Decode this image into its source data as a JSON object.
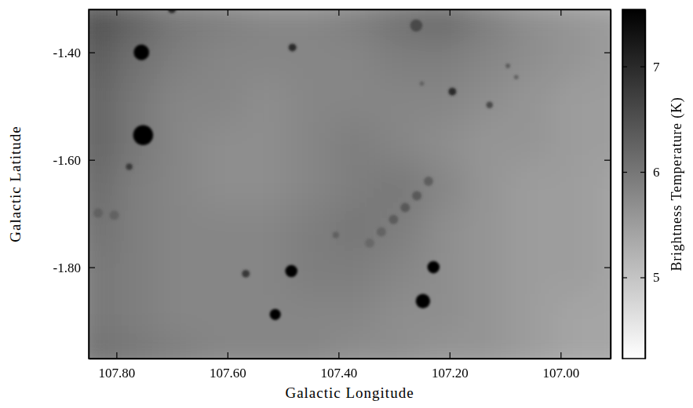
{
  "chart_data": {
    "type": "heatmap",
    "x_label": "Galactic Longitude",
    "y_label": "Galactic Latitude",
    "xlim": [
      107.85,
      106.91
    ],
    "ylim": [
      -1.97,
      -1.32
    ],
    "xticks": [
      {
        "value": 107.8,
        "label": "107.80"
      },
      {
        "value": 107.6,
        "label": "107.60"
      },
      {
        "value": 107.4,
        "label": "107.40"
      },
      {
        "value": 107.2,
        "label": "107.20"
      },
      {
        "value": 107.0,
        "label": "107.00"
      }
    ],
    "yticks": [
      {
        "value": -1.4,
        "label": "-1.40"
      },
      {
        "value": -1.6,
        "label": "-1.60"
      },
      {
        "value": -1.8,
        "label": "-1.80"
      }
    ],
    "cells": {
      "x": [
        107.85,
        107.77,
        107.69,
        107.61,
        107.53,
        107.45,
        107.37,
        107.29,
        107.21,
        107.13,
        107.05,
        106.97,
        106.89
      ],
      "y": [
        -1.33,
        -1.41,
        -1.49,
        -1.57,
        -1.65,
        -1.73,
        -1.81,
        -1.89,
        -1.97
      ],
      "values": [
        [
          6.6,
          6.3,
          6.0,
          5.9,
          5.8,
          5.8,
          5.9,
          6.1,
          6.2,
          5.9,
          5.7,
          5.6,
          5.5
        ],
        [
          6.4,
          6.1,
          5.9,
          5.8,
          5.8,
          5.8,
          5.8,
          5.9,
          5.9,
          5.8,
          5.7,
          5.6,
          5.5
        ],
        [
          6.3,
          6.0,
          5.8,
          5.8,
          5.7,
          5.8,
          5.8,
          5.8,
          5.8,
          5.7,
          5.6,
          5.5,
          5.5
        ],
        [
          6.3,
          6.0,
          5.8,
          5.7,
          5.7,
          5.8,
          5.9,
          5.8,
          5.7,
          5.6,
          5.6,
          5.5,
          5.5
        ],
        [
          6.2,
          5.9,
          5.8,
          5.7,
          5.7,
          5.8,
          5.9,
          6.0,
          5.8,
          5.6,
          5.5,
          5.5,
          5.4
        ],
        [
          6.1,
          5.9,
          5.8,
          5.8,
          5.8,
          5.9,
          6.0,
          5.9,
          5.7,
          5.6,
          5.5,
          5.5,
          5.4
        ],
        [
          6.0,
          5.9,
          5.8,
          5.8,
          5.8,
          5.9,
          5.9,
          5.8,
          5.7,
          5.6,
          5.5,
          5.5,
          5.4
        ],
        [
          6.0,
          5.9,
          5.8,
          5.8,
          5.8,
          5.8,
          5.8,
          5.7,
          5.7,
          5.6,
          5.5,
          5.4,
          5.4
        ],
        [
          6.1,
          6.0,
          5.9,
          5.8,
          5.8,
          5.8,
          5.7,
          5.7,
          5.6,
          5.6,
          5.5,
          5.4,
          5.4
        ]
      ]
    },
    "sources": {
      "x": [
        107.755,
        107.752,
        107.777,
        107.483,
        107.7,
        107.485,
        107.514,
        107.567,
        107.229,
        107.248,
        107.195,
        107.128,
        107.095,
        107.08,
        107.26,
        107.405,
        107.25
      ],
      "y": [
        -1.4,
        -1.554,
        -1.613,
        -1.391,
        -1.32,
        -1.807,
        -1.888,
        -1.812,
        -1.8,
        -1.863,
        -1.473,
        -1.498,
        -1.425,
        -1.446,
        -1.35,
        -1.74,
        -1.458
      ],
      "values": [
        7.5,
        7.5,
        6.8,
        7.0,
        7.0,
        7.5,
        7.5,
        6.8,
        7.5,
        7.5,
        7.0,
        6.6,
        6.4,
        6.3,
        6.6,
        6.3,
        6.3
      ],
      "size": [
        0.014,
        0.018,
        0.006,
        0.007,
        0.007,
        0.011,
        0.01,
        0.007,
        0.011,
        0.013,
        0.007,
        0.006,
        0.004,
        0.004,
        0.011,
        0.006,
        0.004
      ]
    },
    "filament": {
      "x": [
        107.238,
        107.259,
        107.28,
        107.301,
        107.323,
        107.344,
        107.833,
        107.804
      ],
      "y": [
        -1.64,
        -1.667,
        -1.689,
        -1.711,
        -1.734,
        -1.755,
        -1.699,
        -1.703
      ],
      "values": [
        6.5,
        6.6,
        6.6,
        6.5,
        6.4,
        6.3,
        6.4,
        6.4
      ]
    },
    "colorbar": {
      "label": "Brightness Temperature (K)",
      "range": [
        4.23,
        7.54
      ],
      "ticks": [
        5,
        6,
        7
      ]
    }
  }
}
